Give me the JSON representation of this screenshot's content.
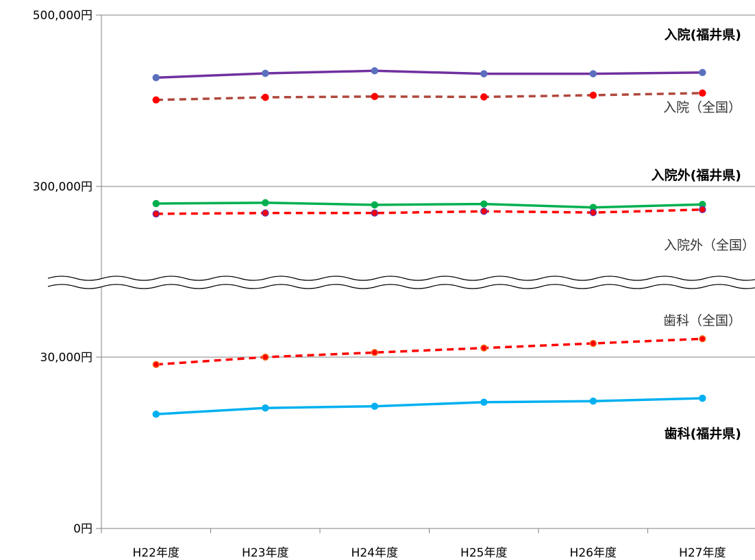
{
  "chart_data": {
    "type": "line",
    "categories": [
      "H22年度",
      "H23年度",
      "H24年度",
      "H25年度",
      "H26年度",
      "H27年度"
    ],
    "y_axis": {
      "broken": true,
      "tick_labels": [
        "500,000円",
        "300,000円",
        "30,000円",
        "0円"
      ],
      "upper_range": [
        225000,
        500000
      ],
      "lower_range": [
        0,
        50000
      ]
    },
    "grid": true,
    "colors": {
      "inpatient_fukui": "#7030a0",
      "inpatient_fukui_marker": "#5b6fbf",
      "inpatient_national": "#b0473c",
      "inpatient_national_marker": "#ff0000",
      "outpatient_fukui": "#00b050",
      "outpatient_national": "#ff0000",
      "outpatient_national_marker": "#7030a0",
      "dental_national": "#ff0000",
      "dental_national_marker": "#ed7d31",
      "dental_fukui": "#00b0f0",
      "axis": "#808080"
    },
    "series": [
      {
        "name": "入院(福井県)",
        "segment": "upper",
        "style": "solid",
        "values": [
          427000,
          432000,
          435000,
          431500,
          431500,
          433000
        ]
      },
      {
        "name": "入院（全国）",
        "segment": "upper",
        "style": "dashed",
        "values": [
          401000,
          404000,
          405000,
          404500,
          406500,
          409000
        ]
      },
      {
        "name": "入院外(福井県)",
        "segment": "upper",
        "style": "solid",
        "values": [
          280000,
          281000,
          278500,
          279500,
          275500,
          279000
        ]
      },
      {
        "name": "入院外（全国）",
        "segment": "upper",
        "style": "dashed",
        "values": [
          268000,
          269000,
          269000,
          271000,
          269500,
          273000
        ]
      },
      {
        "name": "歯科（全国）",
        "segment": "lower",
        "style": "dashed",
        "values": [
          28700,
          30000,
          30800,
          31600,
          32400,
          33200
        ]
      },
      {
        "name": "歯科(福井県)",
        "segment": "lower",
        "style": "solid",
        "values": [
          20000,
          21100,
          21400,
          22100,
          22300,
          22800
        ]
      }
    ]
  }
}
